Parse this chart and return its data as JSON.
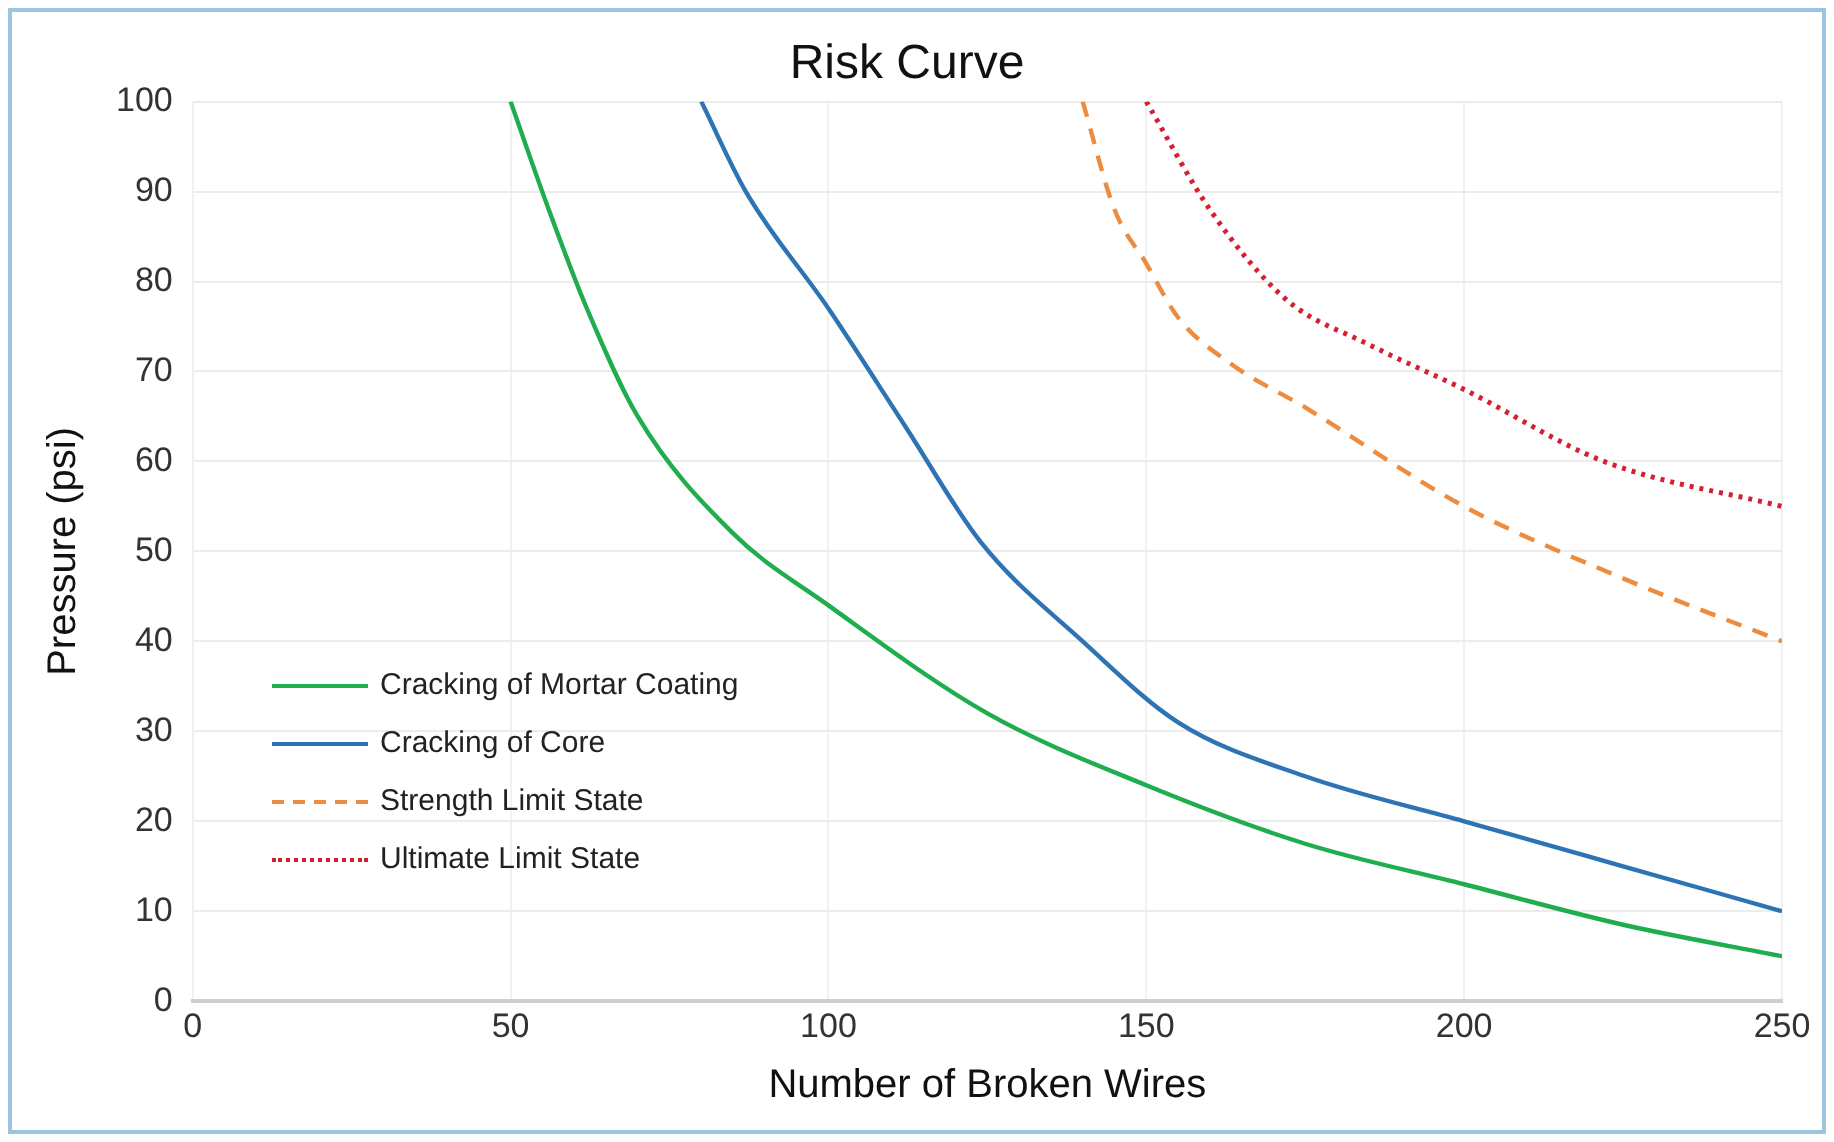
{
  "chart_data": {
    "type": "line",
    "title": "Risk Curve",
    "xlabel": "Number of Broken Wires",
    "ylabel": "Pressure (psi)",
    "xlim": [
      0,
      250
    ],
    "xticks": [
      0,
      50,
      100,
      150,
      200,
      250
    ],
    "ylim": [
      0,
      100
    ],
    "yticks": [
      0,
      10,
      20,
      30,
      40,
      50,
      60,
      70,
      80,
      90,
      100
    ],
    "grid": true,
    "legend": "bottom left",
    "marker": "none",
    "series": [
      {
        "name": "Cracking of Mortar Coating",
        "color": "#1fad4e",
        "line_style": "solid",
        "x": [
          50,
          56,
          62,
          70,
          85,
          100,
          125,
          150,
          175,
          200,
          225,
          250
        ],
        "values": [
          100,
          88,
          77,
          65,
          52,
          44,
          32,
          24,
          17.5,
          13,
          8.5,
          5
        ]
      },
      {
        "name": "Cracking of Core",
        "color": "#2e74b5",
        "line_style": "solid",
        "x": [
          80,
          87,
          100,
          112,
          124,
          140,
          155,
          175,
          200,
          225,
          250
        ],
        "values": [
          100,
          90,
          77,
          64,
          51,
          40,
          31,
          25,
          20,
          15,
          10
        ]
      },
      {
        "name": "Strength Limit State",
        "color": "#ed8c3e",
        "line_style": "dashed",
        "x": [
          140,
          145,
          150,
          155,
          163,
          175,
          200,
          225,
          250
        ],
        "values": [
          100,
          88,
          82,
          76,
          71,
          66,
          55,
          47,
          40
        ]
      },
      {
        "name": "Ultimate Limit State",
        "color": "#d62031",
        "line_style": "dotted",
        "x": [
          150,
          160,
          172,
          185,
          200,
          222,
          250
        ],
        "values": [
          100,
          88,
          78,
          73,
          68,
          60,
          55
        ]
      }
    ]
  }
}
